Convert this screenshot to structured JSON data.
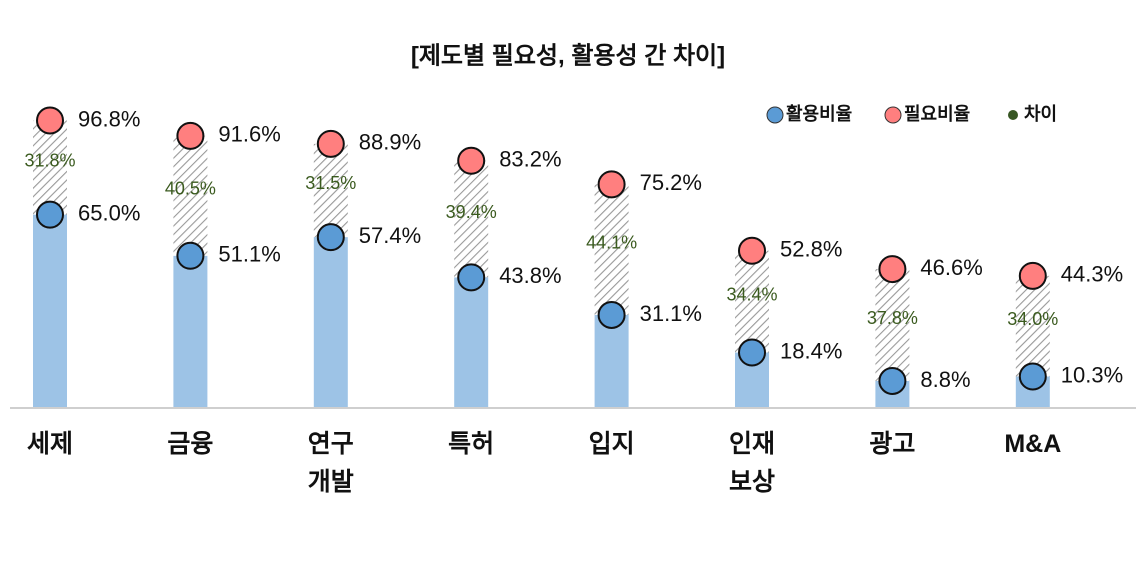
{
  "chart_data": {
    "type": "dumbbell",
    "title": "[제도별 필요성, 활용성 간 차이]",
    "categories": [
      "세제",
      "금융",
      "연구\n개발",
      "특허",
      "입지",
      "인재\n보상",
      "광고",
      "M&A"
    ],
    "bar_color": "#9dc3e6",
    "series": [
      {
        "name": "활용비율",
        "color": "#5b9bd5",
        "values": [
          65.0,
          51.1,
          57.4,
          43.8,
          31.1,
          18.4,
          8.8,
          10.3
        ],
        "value_labels": [
          "65.0%",
          "51.1%",
          "57.4%",
          "43.8%",
          "31.1%",
          "18.4%",
          "8.8%",
          "10.3%"
        ]
      },
      {
        "name": "필요비율",
        "color": "#ff7f7f",
        "values": [
          96.8,
          91.6,
          88.9,
          83.2,
          75.2,
          52.8,
          46.6,
          44.3
        ],
        "value_labels": [
          "96.8%",
          "91.6%",
          "88.9%",
          "83.2%",
          "75.2%",
          "52.8%",
          "46.6%",
          "44.3%"
        ]
      },
      {
        "name": "차이",
        "color": "#375623",
        "values": [
          31.8,
          40.5,
          31.5,
          39.4,
          44.1,
          34.4,
          37.8,
          34.0
        ],
        "value_labels": [
          "31.8%",
          "40.5%",
          "31.5%",
          "39.4%",
          "44.1%",
          "34.4%",
          "37.8%",
          "34.0%"
        ]
      }
    ],
    "legend": "top-right"
  }
}
